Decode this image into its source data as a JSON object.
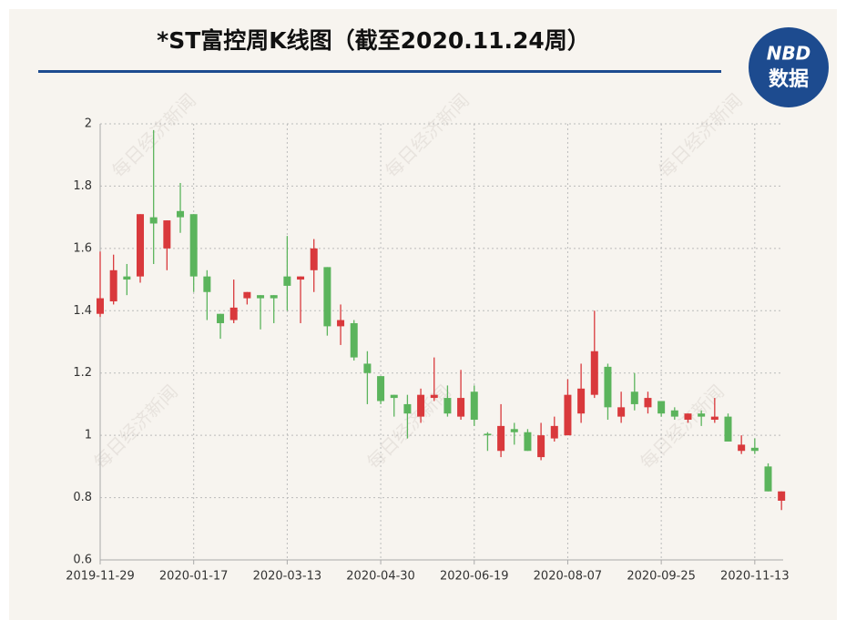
{
  "chart_data": {
    "type": "candlestick",
    "title": "*ST富控周K线图（截至2020.11.24周）",
    "logo": {
      "top": "NBD",
      "bottom": "数据"
    },
    "watermark": "每日经济新闻",
    "categories": [
      "2019-11-29",
      null,
      null,
      null,
      null,
      null,
      null,
      "2020-01-17",
      null,
      null,
      null,
      null,
      null,
      null,
      "2020-03-13",
      null,
      null,
      null,
      null,
      null,
      null,
      "2020-04-30",
      null,
      null,
      null,
      null,
      null,
      null,
      "2020-06-19",
      null,
      null,
      null,
      null,
      null,
      null,
      "2020-08-07",
      null,
      null,
      null,
      null,
      null,
      null,
      "2020-09-25",
      null,
      null,
      null,
      null,
      null,
      null,
      "2020-11-13",
      null,
      null
    ],
    "open": [
      1.39,
      1.43,
      1.51,
      1.51,
      1.7,
      1.6,
      1.72,
      1.71,
      1.51,
      1.39,
      1.37,
      1.44,
      1.45,
      1.45,
      1.51,
      1.5,
      1.53,
      1.54,
      1.35,
      1.36,
      1.23,
      1.19,
      1.13,
      1.1,
      1.06,
      1.12,
      1.12,
      1.06,
      1.14,
      1.005,
      0.95,
      1.02,
      1.01,
      0.93,
      0.99,
      1.0,
      1.07,
      1.13,
      1.22,
      1.06,
      1.14,
      1.09,
      1.11,
      1.08,
      1.05,
      1.07,
      1.05,
      1.06,
      0.95,
      0.96,
      0.9,
      0.79
    ],
    "high": [
      1.59,
      1.58,
      1.55,
      1.71,
      1.98,
      1.69,
      1.81,
      1.71,
      1.53,
      1.39,
      1.5,
      1.46,
      1.45,
      1.45,
      1.64,
      1.51,
      1.63,
      1.54,
      1.42,
      1.37,
      1.27,
      1.19,
      1.13,
      1.13,
      1.15,
      1.25,
      1.16,
      1.21,
      1.16,
      1.01,
      1.1,
      1.04,
      1.02,
      1.04,
      1.06,
      1.18,
      1.23,
      1.4,
      1.23,
      1.14,
      1.2,
      1.14,
      1.11,
      1.09,
      1.07,
      1.08,
      1.12,
      1.07,
      1.0,
      0.99,
      0.91,
      0.82
    ],
    "low": [
      1.38,
      1.42,
      1.45,
      1.49,
      1.55,
      1.53,
      1.65,
      1.46,
      1.37,
      1.31,
      1.36,
      1.42,
      1.34,
      1.36,
      1.4,
      1.36,
      1.46,
      1.32,
      1.29,
      1.24,
      1.1,
      1.1,
      1.06,
      0.99,
      1.04,
      1.11,
      1.06,
      1.05,
      1.03,
      0.95,
      0.93,
      0.97,
      0.95,
      0.92,
      0.98,
      1.0,
      1.04,
      1.12,
      1.05,
      1.04,
      1.08,
      1.07,
      1.06,
      1.05,
      1.04,
      1.03,
      1.04,
      0.98,
      0.94,
      0.94,
      0.82,
      0.76
    ],
    "close": [
      1.44,
      1.53,
      1.5,
      1.71,
      1.68,
      1.69,
      1.7,
      1.51,
      1.46,
      1.36,
      1.41,
      1.46,
      1.44,
      1.44,
      1.48,
      1.51,
      1.6,
      1.35,
      1.37,
      1.25,
      1.2,
      1.11,
      1.12,
      1.07,
      1.13,
      1.13,
      1.07,
      1.12,
      1.05,
      1.0,
      1.03,
      1.01,
      0.95,
      1.0,
      1.03,
      1.13,
      1.15,
      1.27,
      1.09,
      1.09,
      1.1,
      1.12,
      1.07,
      1.06,
      1.07,
      1.06,
      1.06,
      0.98,
      0.97,
      0.95,
      0.82,
      0.82
    ],
    "up_color": "#d9393c",
    "down_color": "#5bb45c",
    "ylim": [
      0.6,
      2
    ],
    "yticks": [
      0.6,
      0.8,
      1,
      1.2,
      1.4,
      1.6,
      1.8,
      2
    ],
    "grid": true
  }
}
